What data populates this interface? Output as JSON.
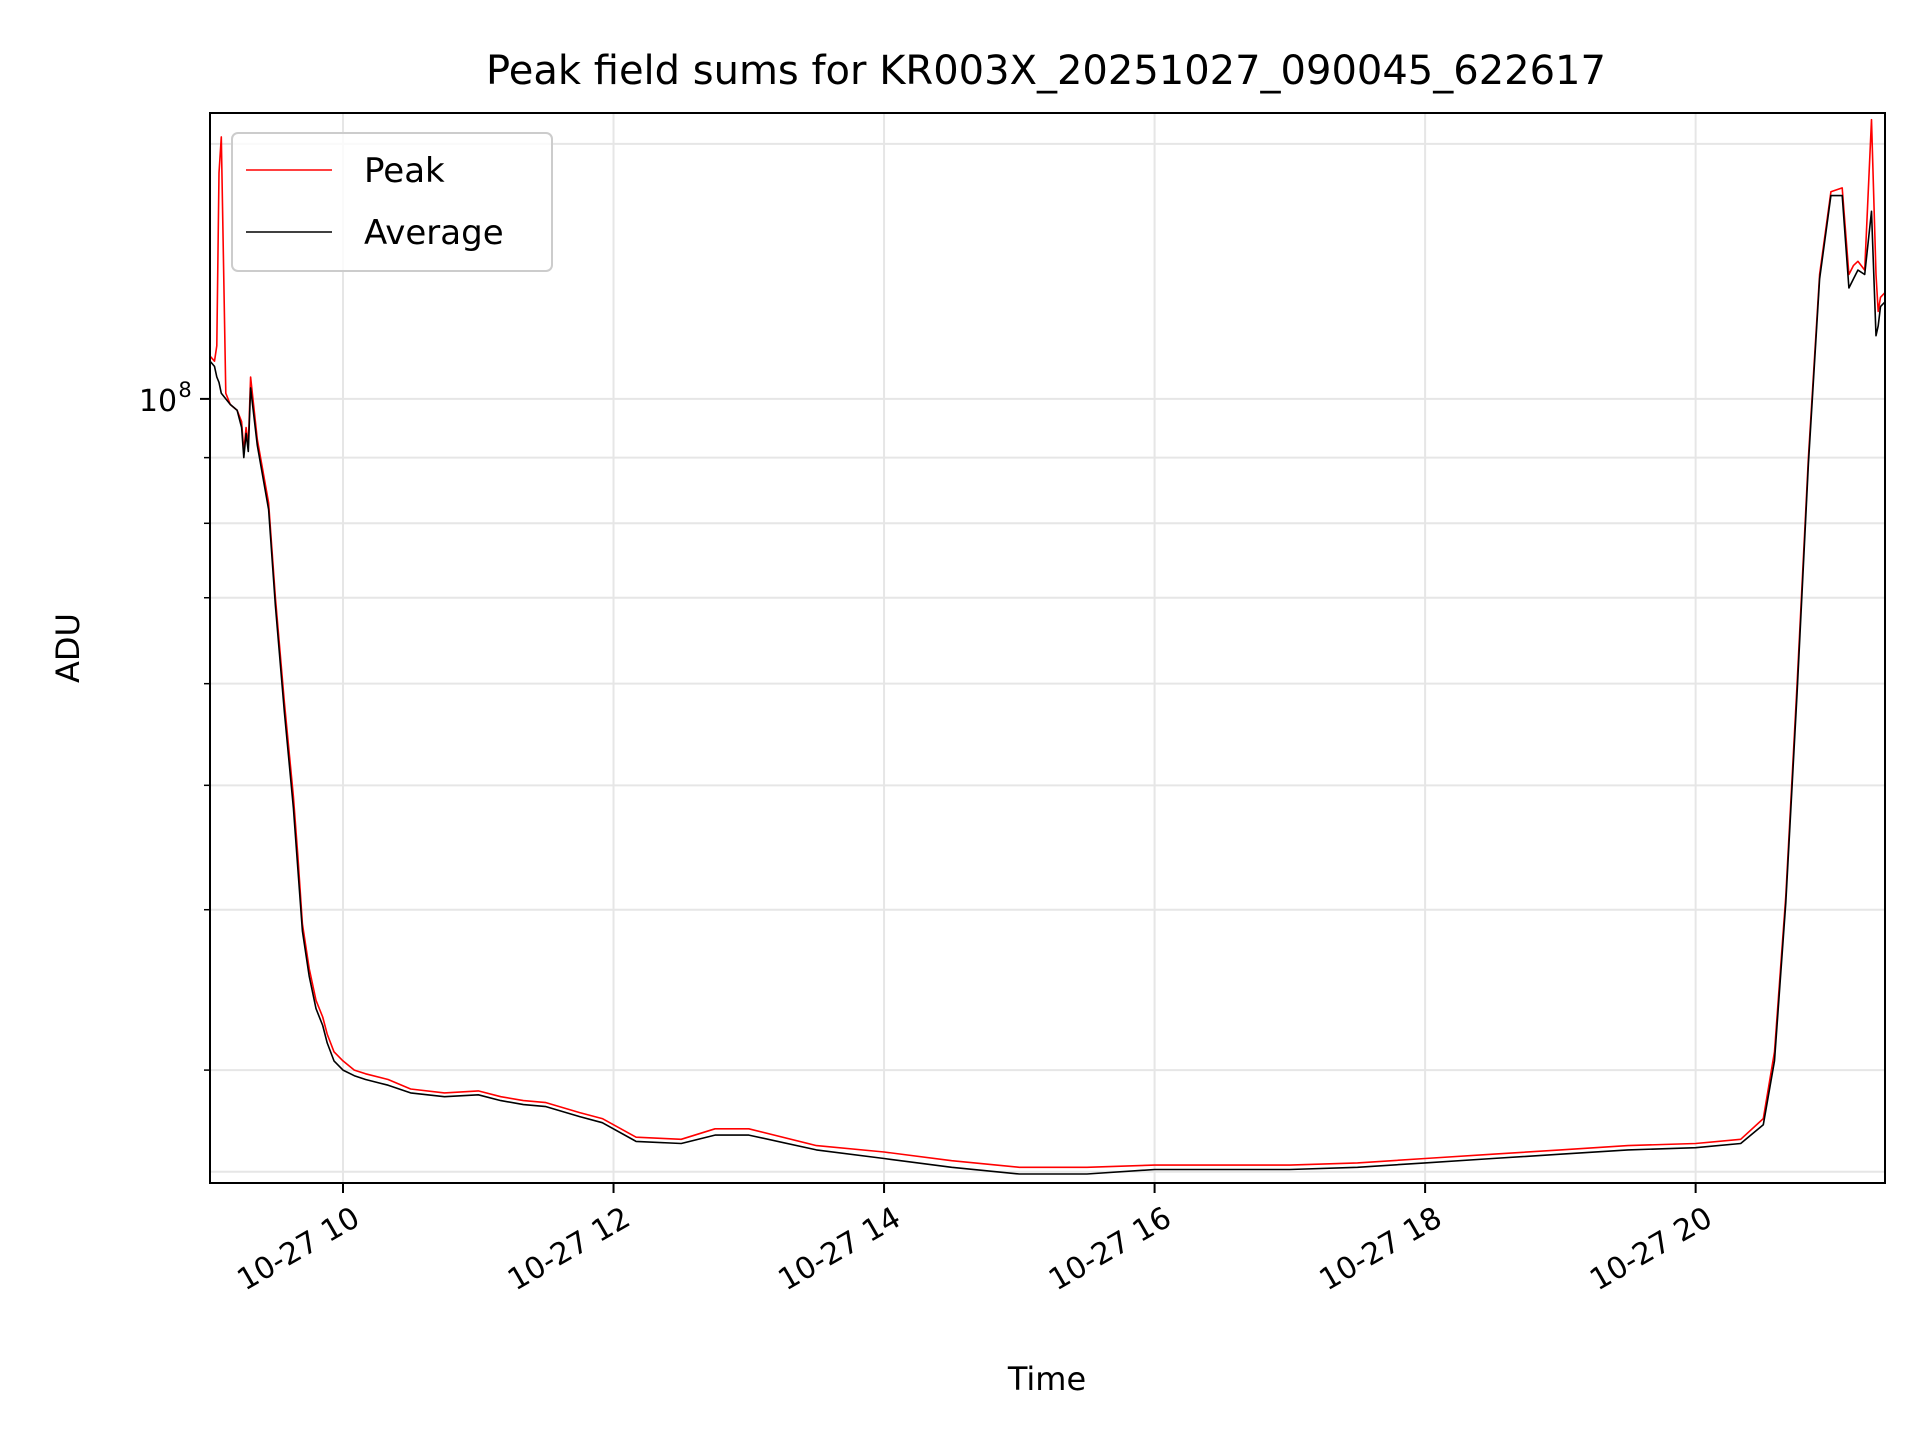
{
  "chart_data": {
    "type": "line",
    "title": "Peak field sums for KR003X_20251027_090045_622617",
    "xlabel": "Time",
    "ylabel": "ADU",
    "y_scale": "log",
    "grid": "on",
    "legend_position": "top-left",
    "x_range": [
      "2025-10-27 09:01",
      "2025-10-27 21:24"
    ],
    "y_range": [
      24500000,
      167000000
    ],
    "x_ticks": [
      "10-27 10",
      "10-27 12",
      "10-27 14",
      "10-27 16",
      "10-27 18",
      "10-27 20"
    ],
    "y_tick_labels": [
      {
        "value": 100000000,
        "base": "10",
        "exp": "8"
      }
    ],
    "colors": {
      "Peak": "#ff0000",
      "Average": "#000000",
      "grid": "#e6e6e6"
    },
    "series": [
      {
        "name": "Peak",
        "color": "#ff0000",
        "x": [
          "2025-10-27 09:01",
          "2025-10-27 09:03",
          "2025-10-27 09:04",
          "2025-10-27 09:05",
          "2025-10-27 09:06",
          "2025-10-27 09:08",
          "2025-10-27 09:10",
          "2025-10-27 09:13",
          "2025-10-27 09:15",
          "2025-10-27 09:16",
          "2025-10-27 09:17",
          "2025-10-27 09:18",
          "2025-10-27 09:19",
          "2025-10-27 09:22",
          "2025-10-27 09:27",
          "2025-10-27 09:30",
          "2025-10-27 09:34",
          "2025-10-27 09:38",
          "2025-10-27 09:40",
          "2025-10-27 09:42",
          "2025-10-27 09:45",
          "2025-10-27 09:48",
          "2025-10-27 09:51",
          "2025-10-27 09:53",
          "2025-10-27 09:56",
          "2025-10-27 10:00",
          "2025-10-27 10:05",
          "2025-10-27 10:10",
          "2025-10-27 10:20",
          "2025-10-27 10:30",
          "2025-10-27 10:45",
          "2025-10-27 11:00",
          "2025-10-27 11:10",
          "2025-10-27 11:20",
          "2025-10-27 11:30",
          "2025-10-27 11:45",
          "2025-10-27 11:55",
          "2025-10-27 12:10",
          "2025-10-27 12:30",
          "2025-10-27 12:45",
          "2025-10-27 13:00",
          "2025-10-27 13:30",
          "2025-10-27 14:00",
          "2025-10-27 14:30",
          "2025-10-27 15:00",
          "2025-10-27 15:30",
          "2025-10-27 16:00",
          "2025-10-27 16:30",
          "2025-10-27 17:00",
          "2025-10-27 17:30",
          "2025-10-27 18:00",
          "2025-10-27 18:30",
          "2025-10-27 19:00",
          "2025-10-27 19:30",
          "2025-10-27 20:00",
          "2025-10-27 20:20",
          "2025-10-27 20:30",
          "2025-10-27 20:35",
          "2025-10-27 20:40",
          "2025-10-27 20:45",
          "2025-10-27 20:50",
          "2025-10-27 20:55",
          "2025-10-27 21:00",
          "2025-10-27 21:05",
          "2025-10-27 21:08",
          "2025-10-27 21:10",
          "2025-10-27 21:12",
          "2025-10-27 21:15",
          "2025-10-27 21:18",
          "2025-10-27 21:20",
          "2025-10-27 21:21",
          "2025-10-27 21:22",
          "2025-10-27 21:24"
        ],
        "y": [
          108000000,
          107000000,
          110000000,
          150000000,
          160000000,
          101000000,
          99000000,
          98000000,
          96000000,
          91000000,
          95000000,
          92000000,
          104000000,
          93000000,
          83000000,
          70000000,
          58000000,
          49000000,
          44000000,
          39000000,
          36000000,
          34000000,
          33000000,
          32000000,
          31000000,
          30500000,
          30000000,
          29800000,
          29500000,
          29000000,
          28800000,
          28900000,
          28600000,
          28400000,
          28300000,
          27800000,
          27500000,
          26600000,
          26500000,
          27000000,
          27000000,
          26200000,
          25900000,
          25500000,
          25200000,
          25200000,
          25300000,
          25300000,
          25300000,
          25400000,
          25600000,
          25800000,
          26000000,
          26200000,
          26300000,
          26500000,
          27500000,
          31000000,
          41000000,
          60000000,
          90000000,
          125000000,
          145000000,
          146000000,
          125000000,
          127000000,
          128000000,
          126000000,
          165000000,
          125000000,
          117000000,
          120000000,
          121000000
        ]
      },
      {
        "name": "Average",
        "color": "#000000",
        "x": [
          "2025-10-27 09:01",
          "2025-10-27 09:03",
          "2025-10-27 09:04",
          "2025-10-27 09:05",
          "2025-10-27 09:06",
          "2025-10-27 09:08",
          "2025-10-27 09:10",
          "2025-10-27 09:13",
          "2025-10-27 09:15",
          "2025-10-27 09:16",
          "2025-10-27 09:17",
          "2025-10-27 09:18",
          "2025-10-27 09:19",
          "2025-10-27 09:22",
          "2025-10-27 09:27",
          "2025-10-27 09:30",
          "2025-10-27 09:34",
          "2025-10-27 09:38",
          "2025-10-27 09:40",
          "2025-10-27 09:42",
          "2025-10-27 09:45",
          "2025-10-27 09:48",
          "2025-10-27 09:51",
          "2025-10-27 09:53",
          "2025-10-27 09:56",
          "2025-10-27 10:00",
          "2025-10-27 10:05",
          "2025-10-27 10:10",
          "2025-10-27 10:20",
          "2025-10-27 10:30",
          "2025-10-27 10:45",
          "2025-10-27 11:00",
          "2025-10-27 11:10",
          "2025-10-27 11:20",
          "2025-10-27 11:30",
          "2025-10-27 11:45",
          "2025-10-27 11:55",
          "2025-10-27 12:10",
          "2025-10-27 12:30",
          "2025-10-27 12:45",
          "2025-10-27 13:00",
          "2025-10-27 13:30",
          "2025-10-27 14:00",
          "2025-10-27 14:30",
          "2025-10-27 15:00",
          "2025-10-27 15:30",
          "2025-10-27 16:00",
          "2025-10-27 16:30",
          "2025-10-27 17:00",
          "2025-10-27 17:30",
          "2025-10-27 18:00",
          "2025-10-27 18:30",
          "2025-10-27 19:00",
          "2025-10-27 19:30",
          "2025-10-27 20:00",
          "2025-10-27 20:20",
          "2025-10-27 20:30",
          "2025-10-27 20:35",
          "2025-10-27 20:40",
          "2025-10-27 20:45",
          "2025-10-27 20:50",
          "2025-10-27 20:55",
          "2025-10-27 21:00",
          "2025-10-27 21:05",
          "2025-10-27 21:08",
          "2025-10-27 21:10",
          "2025-10-27 21:12",
          "2025-10-27 21:15",
          "2025-10-27 21:18",
          "2025-10-27 21:20",
          "2025-10-27 21:21",
          "2025-10-27 21:22",
          "2025-10-27 21:24"
        ],
        "y": [
          107000000,
          106000000,
          104000000,
          103000000,
          101000000,
          100000000,
          99000000,
          98000000,
          95000000,
          90000000,
          94000000,
          91000000,
          102000000,
          92000000,
          82000000,
          69000000,
          57000000,
          48000000,
          43000000,
          38500000,
          35500000,
          33500000,
          32500000,
          31500000,
          30500000,
          30000000,
          29700000,
          29500000,
          29200000,
          28800000,
          28600000,
          28700000,
          28400000,
          28200000,
          28100000,
          27600000,
          27300000,
          26400000,
          26300000,
          26700000,
          26700000,
          26000000,
          25600000,
          25200000,
          24900000,
          24900000,
          25100000,
          25100000,
          25100000,
          25200000,
          25400000,
          25600000,
          25800000,
          26000000,
          26100000,
          26300000,
          27200000,
          30500000,
          40500000,
          59000000,
          89000000,
          124000000,
          144000000,
          144000000,
          122000000,
          124000000,
          126000000,
          125000000,
          140000000,
          112000000,
          114000000,
          118000000,
          119000000
        ]
      }
    ]
  }
}
